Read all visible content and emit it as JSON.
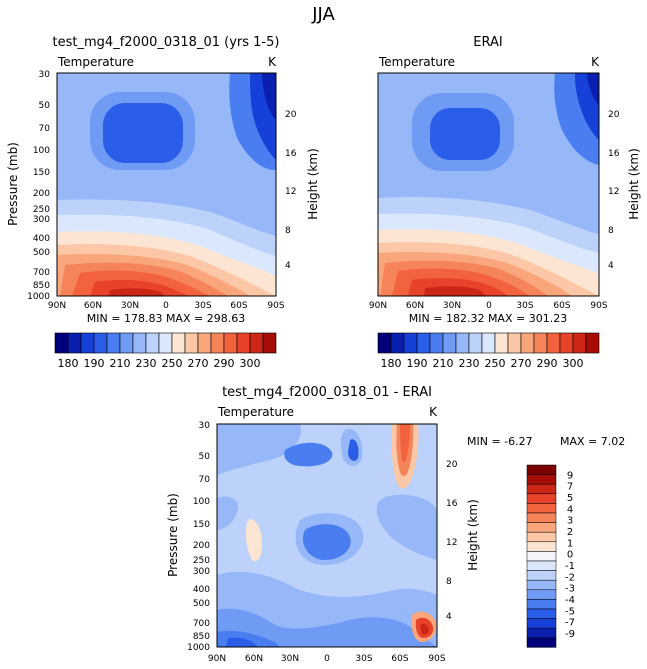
{
  "page_title": "JJA",
  "colors": {
    "blues": [
      "#00007a",
      "#0a1fb0",
      "#1640d8",
      "#2a5de8",
      "#4a7ef0",
      "#6f9bf5",
      "#96b8f8",
      "#bcd2fa",
      "#dbe7fc"
    ],
    "reds": [
      "#fde5d3",
      "#fbc7a6",
      "#f9a67c",
      "#f6845a",
      "#f2623c",
      "#e8432a",
      "#cc2716",
      "#a50d06",
      "#7a0000"
    ],
    "neutral": "#f4f6fb"
  },
  "panels": [
    {
      "id": "model",
      "title": "test_mg4_f2000_0318_01 (yrs 1-5)",
      "left_label": "Temperature",
      "unit": "K",
      "stats": "MIN = 178.83    MAX = 298.63",
      "ylabel": "Pressure (mb)",
      "y2label": "Height (km)"
    },
    {
      "id": "obs",
      "title": "ERAI",
      "left_label": "Temperature",
      "unit": "K",
      "stats": "MIN = 182.32    MAX = 301.23",
      "ylabel": "Pressure (mb)",
      "y2label": "Height (km)"
    },
    {
      "id": "diff",
      "title": "test_mg4_f2000_0318_01 - ERAI",
      "left_label": "Temperature",
      "unit": "K",
      "stats_min": "MIN =   -6.27",
      "stats_max": "MAX =    7.02",
      "ylabel": "Pressure (mb)",
      "y2label": "Height (km)"
    }
  ],
  "chart_data": [
    {
      "type": "heatmap",
      "title": "test_mg4_f2000_0318_01 (yrs 1-5)",
      "variable": "Temperature",
      "units": "K",
      "x_ticks": [
        "90N",
        "60N",
        "30N",
        "0",
        "30S",
        "60S",
        "90S"
      ],
      "y_ticks": [
        30,
        50,
        70,
        100,
        150,
        200,
        250,
        300,
        400,
        500,
        700,
        850,
        1000
      ],
      "y2_ticks": [
        20,
        16,
        12,
        8,
        4
      ],
      "ylabel": "Pressure (mb)",
      "y2label": "Height (km)",
      "min": 178.83,
      "max": 298.63,
      "colorbar_labels": [
        "180",
        "190",
        "210",
        "230",
        "250",
        "270",
        "290",
        "300"
      ]
    },
    {
      "type": "heatmap",
      "title": "ERAI",
      "variable": "Temperature",
      "units": "K",
      "x_ticks": [
        "90N",
        "60N",
        "30N",
        "0",
        "30S",
        "60S",
        "90S"
      ],
      "y_ticks": [
        30,
        50,
        70,
        100,
        150,
        200,
        250,
        300,
        400,
        500,
        700,
        850,
        1000
      ],
      "y2_ticks": [
        20,
        16,
        12,
        8,
        4
      ],
      "ylabel": "Pressure (mb)",
      "y2label": "Height (km)",
      "min": 182.32,
      "max": 301.23,
      "colorbar_labels": [
        "180",
        "190",
        "210",
        "230",
        "250",
        "270",
        "290",
        "300"
      ]
    },
    {
      "type": "heatmap",
      "title": "test_mg4_f2000_0318_01 - ERAI",
      "variable": "Temperature",
      "units": "K",
      "x_ticks": [
        "90N",
        "60N",
        "30N",
        "0",
        "30S",
        "60S",
        "90S"
      ],
      "y_ticks": [
        30,
        50,
        70,
        100,
        150,
        200,
        250,
        300,
        400,
        500,
        700,
        850,
        1000
      ],
      "y2_ticks": [
        20,
        16,
        12,
        8,
        4
      ],
      "ylabel": "Pressure (mb)",
      "y2label": "Height (km)",
      "min": -6.27,
      "max": 7.02,
      "colorbar_labels": [
        "9",
        "7",
        "5",
        "4",
        "3",
        "2",
        "1",
        "0",
        "-1",
        "-2",
        "-3",
        "-4",
        "-5",
        "-7",
        "-9"
      ]
    }
  ]
}
